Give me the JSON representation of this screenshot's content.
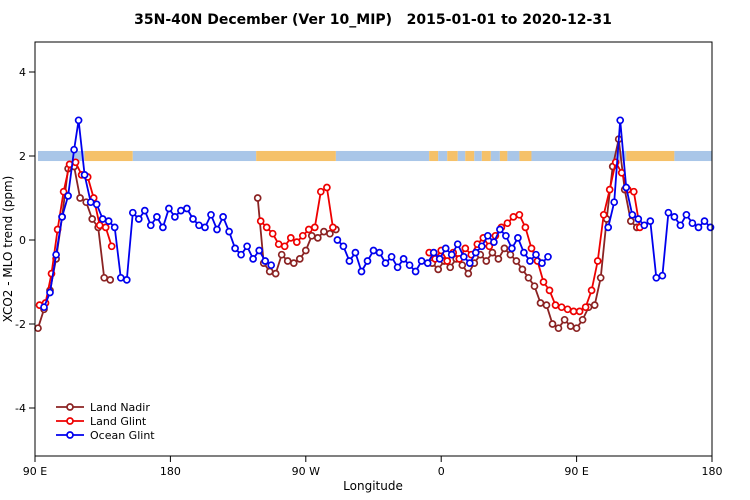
{
  "chart_data": {
    "type": "line",
    "title": "35N-40N December (Ver 10_MIP)   2015-01-01 to 2020-12-31",
    "xlabel": "Longitude",
    "ylabel": "XCO2 - MLO trend (ppm)",
    "xlim": [
      90,
      540
    ],
    "ylim": [
      -5,
      4.75
    ],
    "grid": false,
    "legend_position": "bottom-left",
    "xticks": [
      {
        "value": 90,
        "label": "90 E"
      },
      {
        "value": 180,
        "label": "180"
      },
      {
        "value": 270,
        "label": "90 W"
      },
      {
        "value": 360,
        "label": "0"
      },
      {
        "value": 450,
        "label": "90 E"
      },
      {
        "value": 540,
        "label": "180"
      }
    ],
    "yticks": [
      {
        "value": -4,
        "label": "-4"
      },
      {
        "value": -2,
        "label": "-2"
      },
      {
        "value": 0,
        "label": "0"
      },
      {
        "value": 2,
        "label": "2"
      },
      {
        "value": 4,
        "label": "4"
      }
    ],
    "surface_band": {
      "description": "land/ocean strip drawn near y=2",
      "y_top": 2.12,
      "y_bottom": 1.88,
      "ocean_color": "#a9c6e8",
      "land_color": "#f5c169",
      "segments": [
        {
          "from": 92,
          "to": 123,
          "type": "ocean"
        },
        {
          "from": 123,
          "to": 155,
          "type": "land"
        },
        {
          "from": 155,
          "to": 237,
          "type": "ocean"
        },
        {
          "from": 237,
          "to": 290,
          "type": "land"
        },
        {
          "from": 290,
          "to": 352,
          "type": "ocean"
        },
        {
          "from": 352,
          "to": 358,
          "type": "land"
        },
        {
          "from": 358,
          "to": 364,
          "type": "ocean"
        },
        {
          "from": 364,
          "to": 371,
          "type": "land"
        },
        {
          "from": 371,
          "to": 376,
          "type": "ocean"
        },
        {
          "from": 376,
          "to": 382,
          "type": "land"
        },
        {
          "from": 382,
          "to": 387,
          "type": "ocean"
        },
        {
          "from": 387,
          "to": 393,
          "type": "land"
        },
        {
          "from": 393,
          "to": 399,
          "type": "ocean"
        },
        {
          "from": 399,
          "to": 404,
          "type": "land"
        },
        {
          "from": 404,
          "to": 412,
          "type": "ocean"
        },
        {
          "from": 412,
          "to": 420,
          "type": "land"
        },
        {
          "from": 420,
          "to": 483,
          "type": "ocean"
        },
        {
          "from": 483,
          "to": 515,
          "type": "land"
        },
        {
          "from": 515,
          "to": 540,
          "type": "ocean"
        }
      ]
    },
    "series": [
      {
        "name": "Land Nadir",
        "color": "#8B2323",
        "marker": "open-circle",
        "points": [
          [
            92,
            -2.1
          ],
          [
            96,
            -1.65
          ],
          [
            100,
            -1.2
          ],
          [
            104,
            -0.45
          ],
          [
            108,
            0.55
          ],
          [
            112,
            1.7
          ],
          [
            116,
            1.75
          ],
          [
            120,
            1.0
          ],
          [
            124,
            0.9
          ],
          [
            128,
            0.5
          ],
          [
            132,
            0.3
          ],
          [
            136,
            -0.9
          ],
          [
            140,
            -0.95
          ],
          [
            238,
            1.0
          ],
          [
            242,
            -0.55
          ],
          [
            246,
            -0.75
          ],
          [
            250,
            -0.8
          ],
          [
            254,
            -0.35
          ],
          [
            258,
            -0.5
          ],
          [
            262,
            -0.55
          ],
          [
            266,
            -0.45
          ],
          [
            270,
            -0.25
          ],
          [
            274,
            0.1
          ],
          [
            278,
            0.05
          ],
          [
            282,
            0.2
          ],
          [
            286,
            0.15
          ],
          [
            290,
            0.25
          ],
          [
            354,
            -0.55
          ],
          [
            358,
            -0.7
          ],
          [
            362,
            -0.5
          ],
          [
            366,
            -0.65
          ],
          [
            370,
            -0.45
          ],
          [
            374,
            -0.6
          ],
          [
            378,
            -0.8
          ],
          [
            382,
            -0.55
          ],
          [
            386,
            -0.35
          ],
          [
            390,
            -0.5
          ],
          [
            394,
            -0.3
          ],
          [
            398,
            -0.45
          ],
          [
            402,
            -0.2
          ],
          [
            406,
            -0.35
          ],
          [
            410,
            -0.5
          ],
          [
            414,
            -0.7
          ],
          [
            418,
            -0.9
          ],
          [
            422,
            -1.1
          ],
          [
            426,
            -1.5
          ],
          [
            430,
            -1.55
          ],
          [
            434,
            -2.0
          ],
          [
            438,
            -2.1
          ],
          [
            442,
            -1.9
          ],
          [
            446,
            -2.05
          ],
          [
            450,
            -2.1
          ],
          [
            454,
            -1.9
          ],
          [
            458,
            -1.6
          ],
          [
            462,
            -1.55
          ],
          [
            466,
            -0.9
          ],
          [
            470,
            0.5
          ],
          [
            474,
            1.75
          ],
          [
            478,
            2.4
          ],
          [
            482,
            1.2
          ],
          [
            486,
            0.45
          ],
          [
            490,
            0.3
          ]
        ]
      },
      {
        "name": "Land Glint",
        "color": "#ee0000",
        "marker": "open-circle",
        "points": [
          [
            93,
            -1.55
          ],
          [
            97,
            -1.5
          ],
          [
            101,
            -0.8
          ],
          [
            105,
            0.25
          ],
          [
            109,
            1.15
          ],
          [
            113,
            1.8
          ],
          [
            117,
            1.85
          ],
          [
            121,
            1.55
          ],
          [
            125,
            1.5
          ],
          [
            129,
            1.0
          ],
          [
            133,
            0.35
          ],
          [
            137,
            0.3
          ],
          [
            141,
            -0.15
          ],
          [
            240,
            0.45
          ],
          [
            244,
            0.3
          ],
          [
            248,
            0.15
          ],
          [
            252,
            -0.1
          ],
          [
            256,
            -0.15
          ],
          [
            260,
            0.05
          ],
          [
            264,
            -0.05
          ],
          [
            268,
            0.1
          ],
          [
            272,
            0.25
          ],
          [
            276,
            0.3
          ],
          [
            280,
            1.15
          ],
          [
            284,
            1.25
          ],
          [
            288,
            0.3
          ],
          [
            352,
            -0.3
          ],
          [
            356,
            -0.45
          ],
          [
            360,
            -0.25
          ],
          [
            364,
            -0.5
          ],
          [
            368,
            -0.3
          ],
          [
            372,
            -0.45
          ],
          [
            376,
            -0.2
          ],
          [
            380,
            -0.35
          ],
          [
            384,
            -0.1
          ],
          [
            388,
            0.05
          ],
          [
            392,
            -0.15
          ],
          [
            396,
            0.1
          ],
          [
            400,
            0.3
          ],
          [
            404,
            0.4
          ],
          [
            408,
            0.55
          ],
          [
            412,
            0.6
          ],
          [
            416,
            0.3
          ],
          [
            420,
            -0.2
          ],
          [
            424,
            -0.5
          ],
          [
            428,
            -1.0
          ],
          [
            432,
            -1.2
          ],
          [
            436,
            -1.55
          ],
          [
            440,
            -1.6
          ],
          [
            444,
            -1.65
          ],
          [
            448,
            -1.7
          ],
          [
            452,
            -1.7
          ],
          [
            456,
            -1.6
          ],
          [
            460,
            -1.2
          ],
          [
            464,
            -0.5
          ],
          [
            468,
            0.6
          ],
          [
            472,
            1.2
          ],
          [
            476,
            1.85
          ],
          [
            480,
            1.6
          ],
          [
            484,
            1.2
          ],
          [
            488,
            1.15
          ],
          [
            492,
            0.3
          ]
        ]
      },
      {
        "name": "Ocean Glint",
        "color": "#0000ee",
        "marker": "open-circle",
        "points": [
          [
            96,
            -1.6
          ],
          [
            100,
            -1.25
          ],
          [
            104,
            -0.35
          ],
          [
            108,
            0.55
          ],
          [
            112,
            1.05
          ],
          [
            116,
            2.15
          ],
          [
            119,
            2.85
          ],
          [
            123,
            1.55
          ],
          [
            127,
            0.9
          ],
          [
            131,
            0.85
          ],
          [
            135,
            0.5
          ],
          [
            139,
            0.45
          ],
          [
            143,
            0.3
          ],
          [
            147,
            -0.9
          ],
          [
            151,
            -0.95
          ],
          [
            155,
            0.65
          ],
          [
            159,
            0.5
          ],
          [
            163,
            0.7
          ],
          [
            167,
            0.35
          ],
          [
            171,
            0.55
          ],
          [
            175,
            0.3
          ],
          [
            179,
            0.75
          ],
          [
            183,
            0.55
          ],
          [
            187,
            0.7
          ],
          [
            191,
            0.75
          ],
          [
            195,
            0.5
          ],
          [
            199,
            0.35
          ],
          [
            203,
            0.3
          ],
          [
            207,
            0.6
          ],
          [
            211,
            0.25
          ],
          [
            215,
            0.55
          ],
          [
            219,
            0.2
          ],
          [
            223,
            -0.2
          ],
          [
            227,
            -0.35
          ],
          [
            231,
            -0.15
          ],
          [
            235,
            -0.45
          ],
          [
            239,
            -0.25
          ],
          [
            243,
            -0.5
          ],
          [
            247,
            -0.6
          ],
          [
            291,
            0.0
          ],
          [
            295,
            -0.15
          ],
          [
            299,
            -0.5
          ],
          [
            303,
            -0.3
          ],
          [
            307,
            -0.75
          ],
          [
            311,
            -0.5
          ],
          [
            315,
            -0.25
          ],
          [
            319,
            -0.3
          ],
          [
            323,
            -0.55
          ],
          [
            327,
            -0.4
          ],
          [
            331,
            -0.65
          ],
          [
            335,
            -0.45
          ],
          [
            339,
            -0.6
          ],
          [
            343,
            -0.75
          ],
          [
            347,
            -0.5
          ],
          [
            351,
            -0.55
          ],
          [
            355,
            -0.3
          ],
          [
            359,
            -0.45
          ],
          [
            363,
            -0.2
          ],
          [
            367,
            -0.35
          ],
          [
            371,
            -0.1
          ],
          [
            375,
            -0.4
          ],
          [
            379,
            -0.55
          ],
          [
            383,
            -0.3
          ],
          [
            387,
            -0.15
          ],
          [
            391,
            0.1
          ],
          [
            395,
            -0.05
          ],
          [
            399,
            0.25
          ],
          [
            403,
            0.1
          ],
          [
            407,
            -0.2
          ],
          [
            411,
            0.05
          ],
          [
            415,
            -0.3
          ],
          [
            419,
            -0.5
          ],
          [
            423,
            -0.35
          ],
          [
            427,
            -0.55
          ],
          [
            431,
            -0.4
          ],
          [
            471,
            0.3
          ],
          [
            475,
            0.9
          ],
          [
            479,
            2.85
          ],
          [
            483,
            1.25
          ],
          [
            487,
            0.6
          ],
          [
            491,
            0.5
          ],
          [
            495,
            0.35
          ],
          [
            499,
            0.45
          ],
          [
            503,
            -0.9
          ],
          [
            507,
            -0.85
          ],
          [
            511,
            0.65
          ],
          [
            515,
            0.55
          ],
          [
            519,
            0.35
          ],
          [
            523,
            0.6
          ],
          [
            527,
            0.4
          ],
          [
            531,
            0.3
          ],
          [
            535,
            0.45
          ],
          [
            539,
            0.3
          ]
        ]
      }
    ]
  }
}
